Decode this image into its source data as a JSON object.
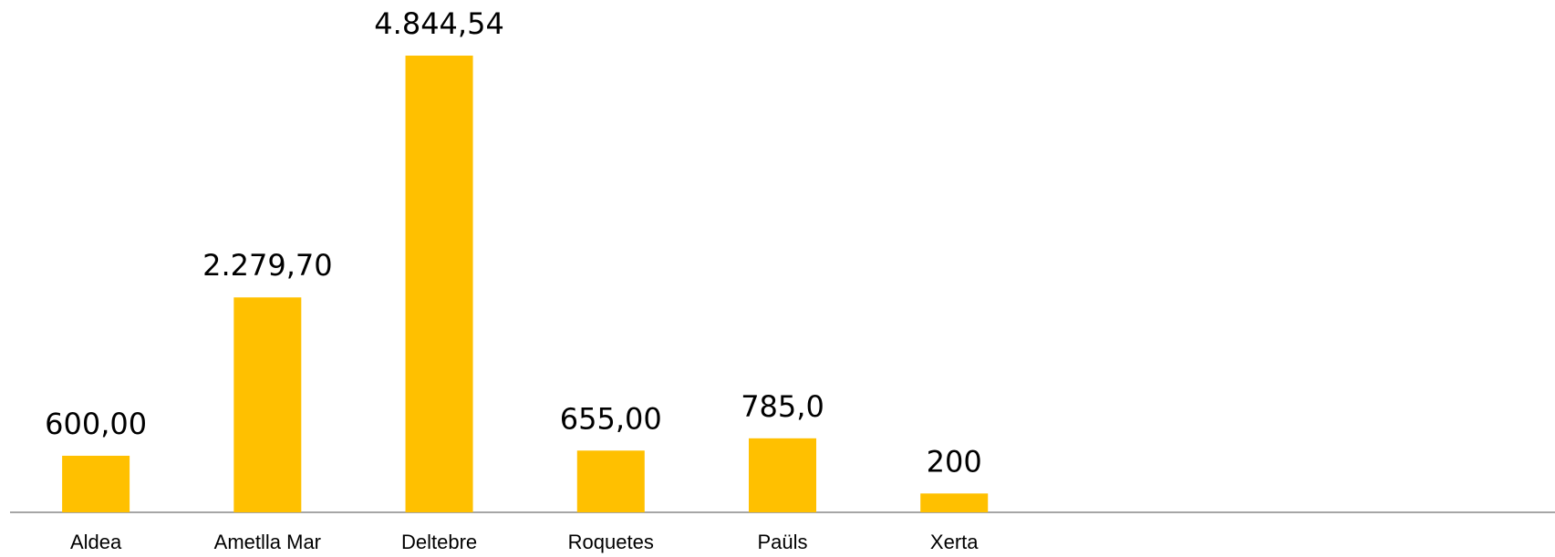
{
  "chart_data": {
    "type": "bar",
    "categories": [
      "Aldea",
      "Ametlla Mar",
      "Deltebre",
      "Roquetes",
      "Paüls",
      "Xerta",
      null,
      null,
      null
    ],
    "values": [
      600,
      2279.7,
      4844.54,
      655,
      785,
      200,
      null,
      null,
      null
    ],
    "value_labels": [
      "600,00",
      "2.279,70",
      "4.844,54",
      "655,00",
      "785,0",
      "200",
      null,
      null,
      null
    ],
    "color": "#ffc000"
  }
}
